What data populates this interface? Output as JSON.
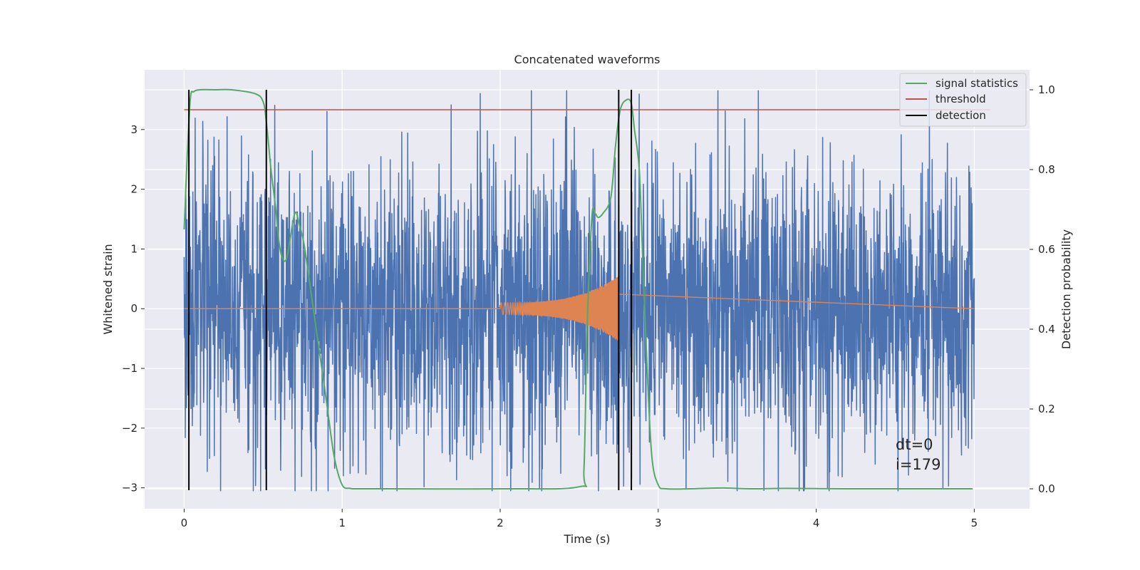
{
  "chart_data": {
    "type": "line",
    "title": "Concatenated waveforms",
    "xlabel": "Time (s)",
    "ylabel": "Whitened strain",
    "y2label": "Detection probability",
    "xlim": [
      -0.25,
      5.35
    ],
    "ylim": [
      -3.35,
      4.0
    ],
    "y2lim": [
      -0.05,
      1.05
    ],
    "xticks": [
      0,
      1,
      2,
      3,
      4,
      5
    ],
    "yticks": [
      -3,
      -2,
      -1,
      0,
      1,
      2,
      3
    ],
    "y2ticks": [
      0.0,
      0.2,
      0.4,
      0.6,
      0.8,
      1.0
    ],
    "xtick_labels": [
      "0",
      "1",
      "2",
      "3",
      "4",
      "5"
    ],
    "ytick_labels": [
      "−3",
      "−2",
      "−1",
      "0",
      "1",
      "2",
      "3"
    ],
    "y2tick_labels": [
      "0.0",
      "0.2",
      "0.4",
      "0.6",
      "0.8",
      "1.0"
    ],
    "grid": true,
    "legend_position": "top-right",
    "legend": [
      {
        "label": "signal statistics",
        "color": "#55a868"
      },
      {
        "label": "threshold",
        "color": "#c44e52"
      },
      {
        "label": "detection",
        "color": "#000000"
      }
    ],
    "colors": {
      "strain": "#4c72b0",
      "template": "#dd8452",
      "signal_statistics": "#55a868",
      "threshold": "#c44e52",
      "detection": "#000000",
      "plot_background": "#eaeaf2",
      "grid": "#ffffff"
    },
    "strain": {
      "x_range": [
        0,
        5
      ],
      "typical_amplitude": 1.2,
      "peak_range": [
        -3.05,
        3.65
      ],
      "y_axis": "left"
    },
    "template": {
      "x_start": 2.0,
      "x_end": 2.75,
      "start_amplitude": 0.1,
      "end_amplitude": 0.55,
      "y_axis": "left"
    },
    "signal_statistics": {
      "y_axis": "right",
      "x": [
        0.0,
        0.02,
        0.04,
        0.06,
        0.1,
        0.2,
        0.3,
        0.45,
        0.5,
        0.52,
        0.55,
        0.58,
        0.6,
        0.62,
        0.65,
        0.7,
        0.73,
        0.76,
        0.8,
        0.85,
        0.9,
        0.95,
        1.0,
        1.05,
        1.1,
        1.3,
        2.0,
        2.5,
        2.53,
        2.55,
        2.58,
        2.6,
        2.62,
        2.65,
        2.7,
        2.73,
        2.76,
        2.8,
        2.83,
        2.85,
        2.88,
        2.9,
        2.93,
        2.96,
        3.0,
        3.05,
        3.2,
        3.4,
        3.6,
        3.8,
        4.2,
        4.5,
        4.99
      ],
      "y": [
        0.65,
        0.84,
        0.98,
        0.995,
        1.0,
        1.0,
        1.0,
        0.99,
        0.97,
        0.92,
        0.8,
        0.7,
        0.62,
        0.58,
        0.58,
        0.69,
        0.66,
        0.61,
        0.5,
        0.36,
        0.22,
        0.08,
        0.01,
        0.001,
        0.0,
        0.0,
        0.0,
        0.005,
        0.05,
        0.4,
        0.68,
        0.69,
        0.68,
        0.69,
        0.73,
        0.86,
        0.95,
        0.975,
        0.965,
        0.9,
        0.8,
        0.6,
        0.3,
        0.08,
        0.01,
        0.0,
        0.0,
        0.002,
        0.0,
        0.001,
        0.0,
        0.0,
        0.0
      ]
    },
    "threshold": {
      "y_axis": "right",
      "value": 0.95,
      "x_range": [
        0,
        5.1
      ]
    },
    "detections": [
      0.03,
      0.52,
      2.75,
      2.83
    ],
    "annotation": {
      "lines": [
        "dt=0",
        "i=179"
      ]
    }
  }
}
